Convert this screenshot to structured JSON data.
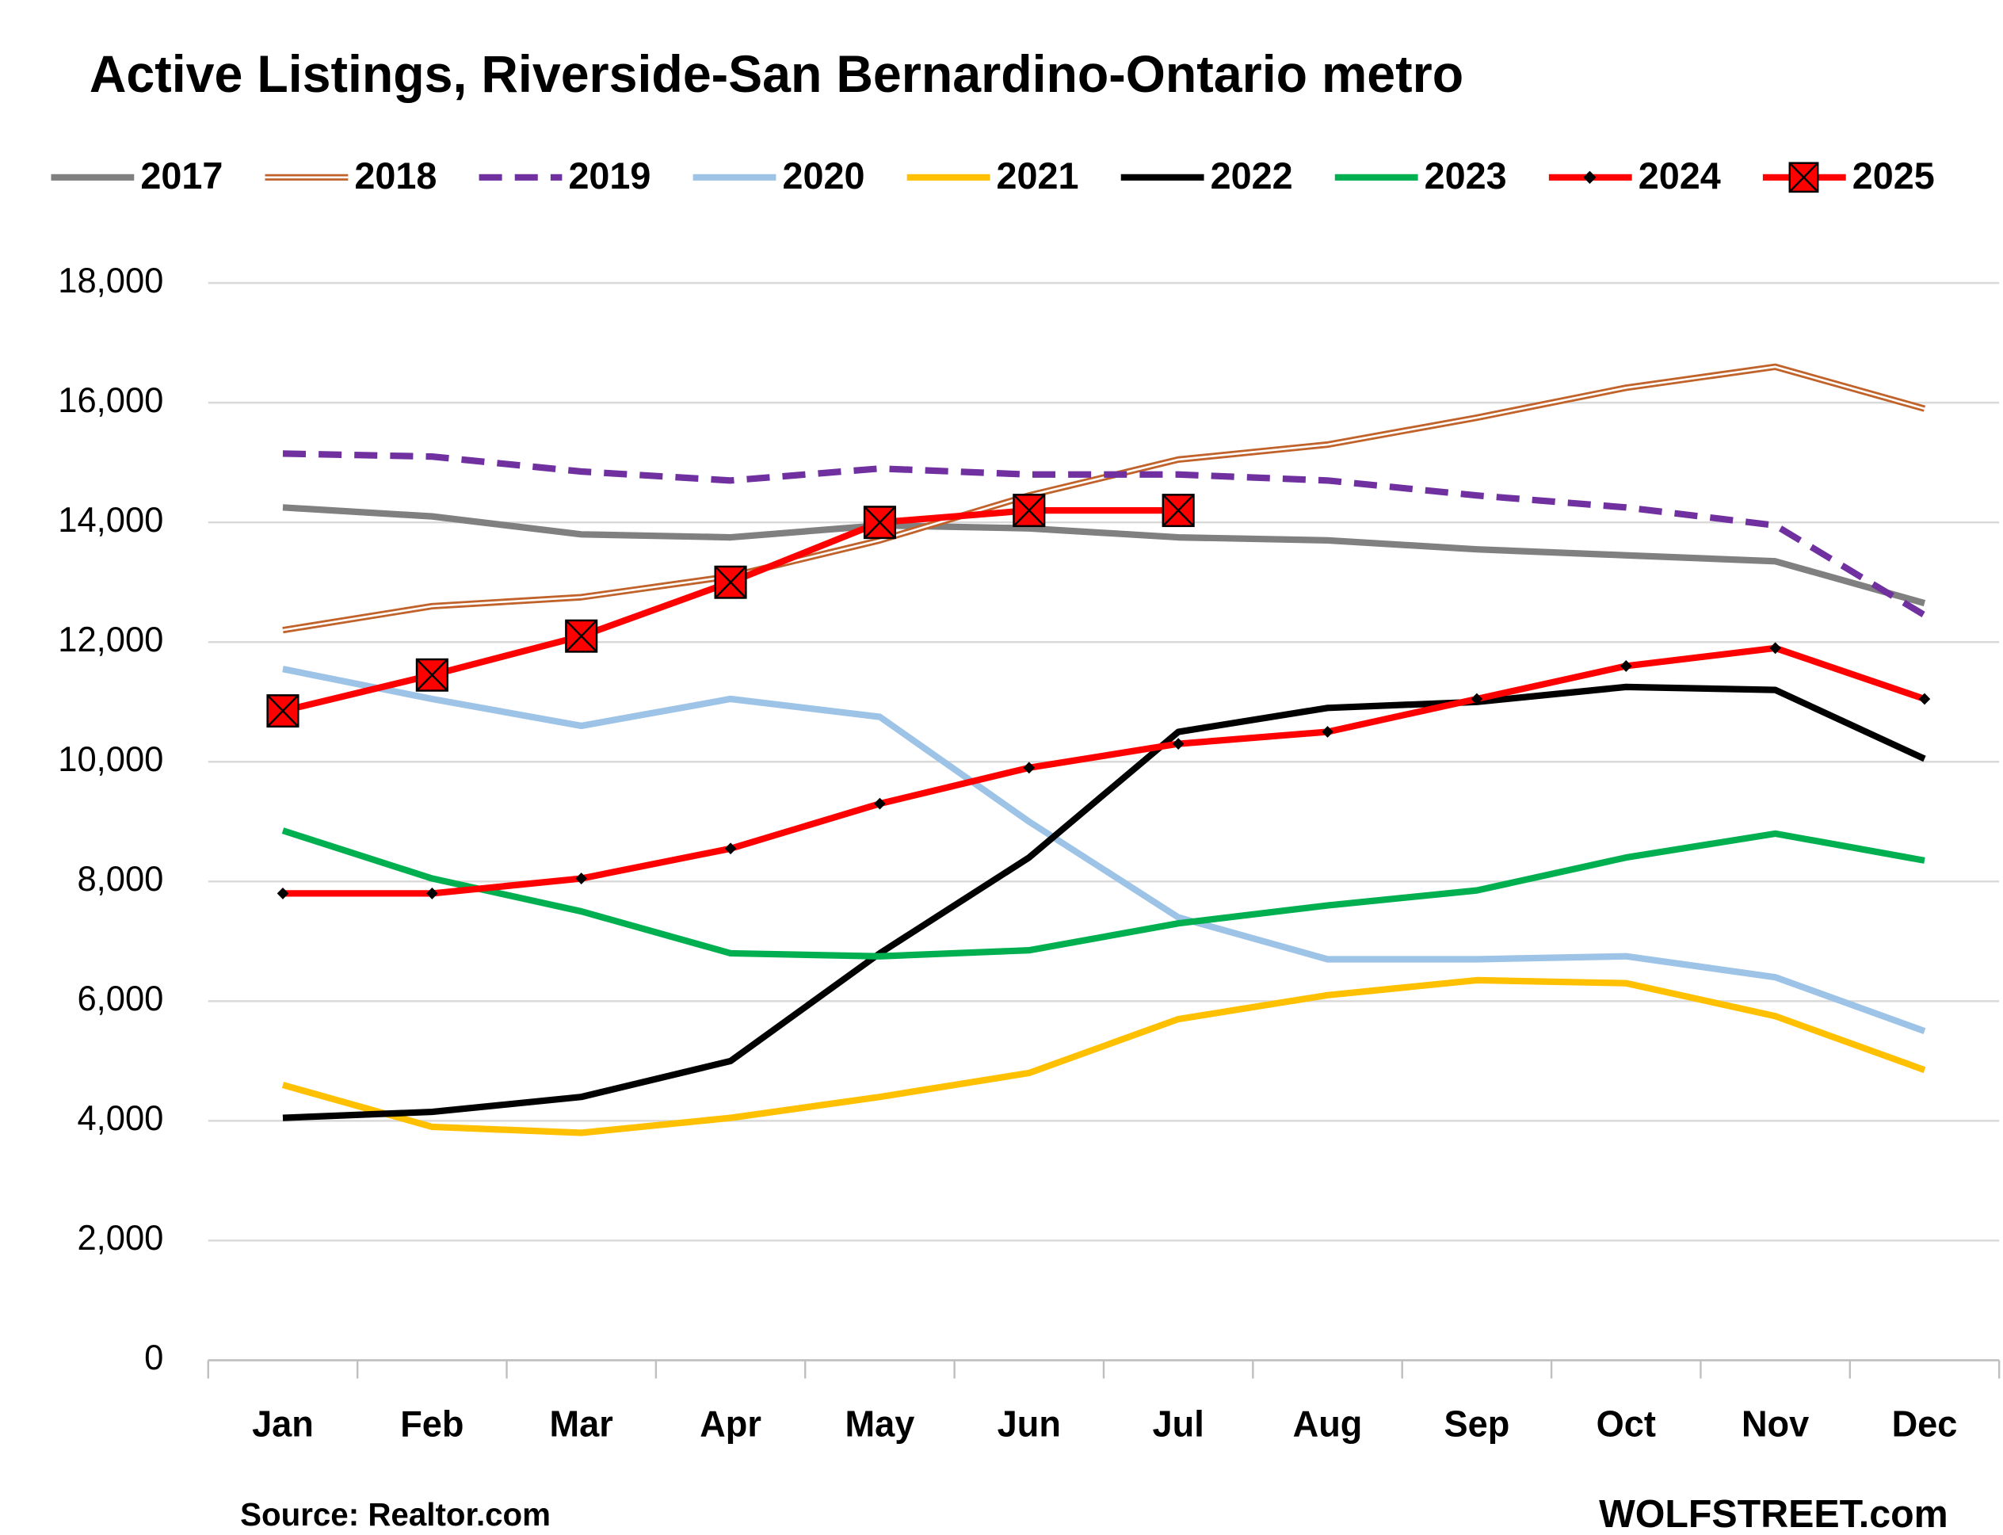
{
  "chart_data": {
    "type": "line",
    "title": "Active Listings, Riverside-San Bernardino-Ontario metro",
    "source": "Source: Realtor.com",
    "brand": "WOLFSTREET.com",
    "categories": [
      "Jan",
      "Feb",
      "Mar",
      "Apr",
      "May",
      "Jun",
      "Jul",
      "Aug",
      "Sep",
      "Oct",
      "Nov",
      "Dec"
    ],
    "ylim": [
      0,
      18000
    ],
    "yticks": [
      0,
      {
        "value": 2000,
        "label": "2,000"
      },
      {
        "value": 4000,
        "label": "4,000"
      },
      {
        "value": 6000,
        "label": "6,000"
      },
      {
        "value": 8000,
        "label": "8,000"
      },
      {
        "value": 10000,
        "label": "10,000"
      },
      {
        "value": 12000,
        "label": "12,000"
      },
      {
        "value": 14000,
        "label": "14,000"
      },
      {
        "value": 16000,
        "label": "16,000"
      },
      {
        "value": 18000,
        "label": "18,000"
      }
    ],
    "grid": true,
    "legend": "top",
    "series": [
      {
        "name": "2017",
        "color": "#808080",
        "style": "solid",
        "values": [
          14250,
          14100,
          13800,
          13750,
          13950,
          13900,
          13750,
          13700,
          13550,
          13450,
          13350,
          12650
        ]
      },
      {
        "name": "2018",
        "color": "#c0622a",
        "style": "double",
        "values": [
          12200,
          12600,
          12750,
          13100,
          13700,
          14450,
          15050,
          15300,
          15750,
          16250,
          16600,
          15900
        ]
      },
      {
        "name": "2019",
        "color": "#7030a0",
        "style": "dashed",
        "values": [
          15150,
          15100,
          14850,
          14700,
          14900,
          14800,
          14800,
          14700,
          14450,
          14250,
          13950,
          12450
        ]
      },
      {
        "name": "2020",
        "color": "#9dc3e6",
        "style": "solid",
        "values": [
          11550,
          11050,
          10600,
          11050,
          10750,
          9000,
          7400,
          6700,
          6700,
          6750,
          6400,
          5500
        ]
      },
      {
        "name": "2021",
        "color": "#ffc000",
        "style": "solid",
        "values": [
          4600,
          3900,
          3800,
          4050,
          4400,
          4800,
          5700,
          6100,
          6350,
          6300,
          5750,
          4850
        ]
      },
      {
        "name": "2022",
        "color": "#000000",
        "style": "solid",
        "values": [
          4050,
          4150,
          4400,
          5000,
          6800,
          8400,
          10500,
          10900,
          11000,
          11250,
          11200,
          10050
        ]
      },
      {
        "name": "2023",
        "color": "#00b050",
        "style": "solid",
        "values": [
          8850,
          8050,
          7500,
          6800,
          6750,
          6850,
          7300,
          7600,
          7850,
          8400,
          8800,
          8350
        ]
      },
      {
        "name": "2024",
        "color": "#ff0000",
        "style": "solid",
        "marker": "diamond",
        "values": [
          7800,
          7800,
          8050,
          8550,
          9300,
          9900,
          10300,
          10500,
          11050,
          11600,
          11900,
          11050
        ]
      },
      {
        "name": "2025",
        "color": "#ff0000",
        "style": "solid",
        "marker": "x-square",
        "values": [
          10850,
          11450,
          12100,
          13000,
          14000,
          14200,
          14200,
          null,
          null,
          null,
          null,
          null
        ]
      }
    ]
  }
}
